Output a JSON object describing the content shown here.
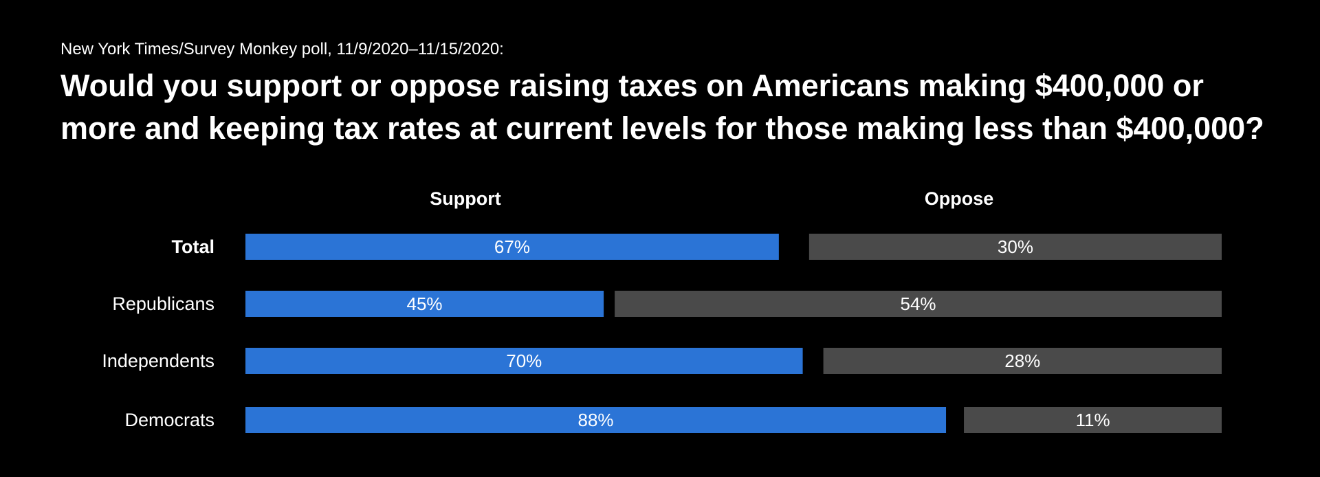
{
  "chart_data": {
    "type": "bar",
    "subtitle": "New York Times/Survey Monkey poll, 11/9/2020–11/15/2020:",
    "title": [
      "Would you support or oppose raising taxes on Americans making $400,000 or",
      "more and keeping tax rates at current levels for those making less than $400,000?"
    ],
    "legend": [
      "Support",
      "Oppose"
    ],
    "categories": [
      "Total",
      "Republicans",
      "Independents",
      "Democrats"
    ],
    "bold_categories": [
      "Total"
    ],
    "series": [
      {
        "name": "Support",
        "values": [
          67,
          45,
          70,
          88
        ],
        "labels": [
          "67%",
          "45%",
          "70%",
          "88%"
        ]
      },
      {
        "name": "Oppose",
        "values": [
          30,
          54,
          28,
          11
        ],
        "labels": [
          "30%",
          "54%",
          "28%",
          "11%"
        ]
      }
    ],
    "colors": {
      "Support": "#2b74d6",
      "Oppose": "#4a4a4a",
      "background": "#000000",
      "text": "#ffffff"
    }
  }
}
